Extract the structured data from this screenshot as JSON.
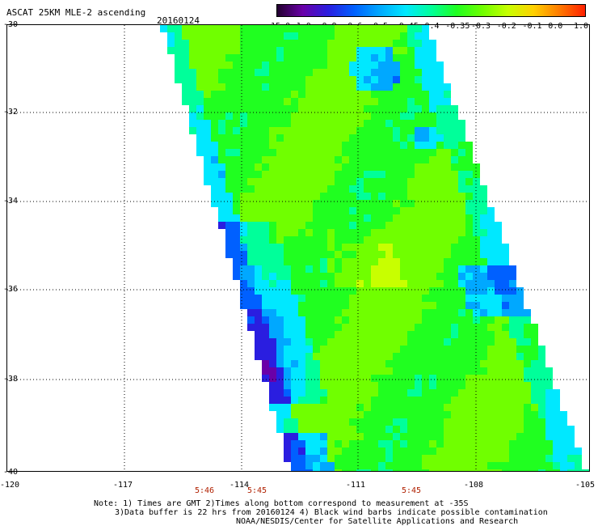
{
  "header": {
    "title": "ASCAT 25KM MLE-2 ascending",
    "date": "20160124"
  },
  "colorbar": {
    "tick_labels": [
      "-15.0",
      "-1.0",
      "-0.8",
      "-0.6",
      "-0.5",
      "-0.45",
      "-0.4",
      "-0.35",
      "-0.3",
      "-0.2",
      "-0.1",
      "0.0",
      "1.0"
    ],
    "colors": [
      "#22002e",
      "#6a00a8",
      "#2a1ee0",
      "#0060ff",
      "#00a8ff",
      "#00e8ff",
      "#00ff9a",
      "#20ff20",
      "#70ff00",
      "#c8ff00",
      "#ffd000",
      "#ff7a00",
      "#ff2000"
    ]
  },
  "map": {
    "lat_labels": [
      "-30",
      "-32",
      "-34",
      "-36",
      "-38",
      "-40"
    ],
    "lon_labels": [
      "-120",
      "-117",
      "-114",
      "-111",
      "-108",
      "-105"
    ],
    "time_labels": [
      "5:46",
      "5:45",
      "5:45"
    ]
  },
  "footer": {
    "note_line1": "Note: 1) Times are GMT 2)Times along bottom correspond to measurement at -35S",
    "note_line2": "3)Data buffer is 22 hrs from 20160124 4) Black wind barbs indicate possible contamination",
    "credit": "NOAA/NESDIS/Center for Satellite Applications and Research"
  }
}
